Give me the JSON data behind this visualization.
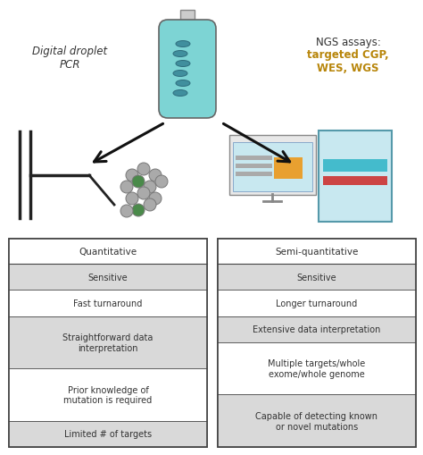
{
  "bg_color": "#ffffff",
  "fig_width": 4.74,
  "fig_height": 5.1,
  "dpi": 100,
  "left_label_line1": "Digital droplet",
  "left_label_line2": "PCR",
  "ngs_line1": "NGS assays:",
  "ngs_line2": "targeted CGP,",
  "ngs_line3": "WES, WGS",
  "left_box": {
    "title": "Quantitative",
    "rows": [
      {
        "text": "Sensitive",
        "shaded": true
      },
      {
        "text": "Fast turnaround",
        "shaded": false
      },
      {
        "text": "Straightforward data\ninterpretation",
        "shaded": true
      },
      {
        "text": "Prior knowledge of\nmutation is required",
        "shaded": false
      },
      {
        "text": "Limited # of targets",
        "shaded": true
      }
    ]
  },
  "right_box": {
    "title": "Semi-quantitative",
    "rows": [
      {
        "text": "Sensitive",
        "shaded": true
      },
      {
        "text": "Longer turnaround",
        "shaded": false
      },
      {
        "text": "Extensive data interpretation",
        "shaded": true
      },
      {
        "text": "Multiple targets/whole\nexome/whole genome",
        "shaded": false
      },
      {
        "text": "Capable of detecting known\nor novel mutations",
        "shaded": true
      }
    ]
  },
  "shaded_color": "#d9d9d9",
  "white_color": "#ffffff",
  "border_color": "#444444",
  "text_color": "#333333",
  "title_fontsize": 7.5,
  "row_fontsize": 7.0,
  "label_fontsize": 8.5,
  "ngs_color_line1": "#333333",
  "ngs_color_line23": "#b8860b",
  "arrow_color": "#111111",
  "tube_color": "#7dd4d4",
  "tube_neck_color": "#dddddd",
  "droplet_gray": "#aaaaaa",
  "droplet_green": "#4a8a4a",
  "droplet_positions": [
    [
      148,
      197,
      false
    ],
    [
      161,
      190,
      false
    ],
    [
      174,
      197,
      false
    ],
    [
      142,
      210,
      false
    ],
    [
      155,
      204,
      true
    ],
    [
      168,
      210,
      false
    ],
    [
      181,
      204,
      false
    ],
    [
      148,
      223,
      false
    ],
    [
      161,
      217,
      false
    ],
    [
      174,
      223,
      false
    ],
    [
      155,
      236,
      true
    ],
    [
      168,
      230,
      false
    ],
    [
      142,
      237,
      false
    ]
  ]
}
